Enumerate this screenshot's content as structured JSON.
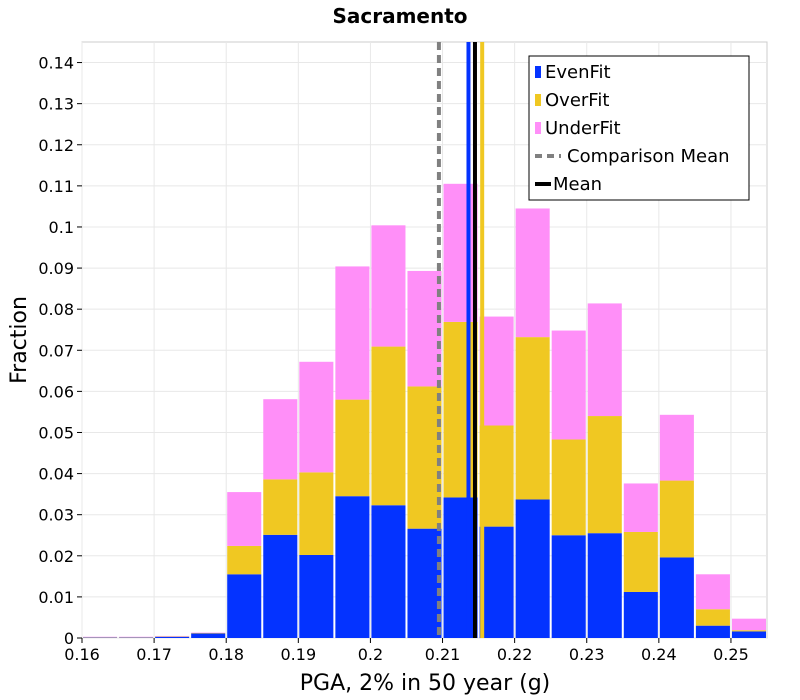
{
  "chart_data": {
    "type": "bar",
    "stacked": true,
    "title": "Sacramento",
    "xlabel": "PGA, 2% in 50 year (g)",
    "ylabel": "Fraction",
    "xlim": [
      0.16,
      0.255
    ],
    "ylim": [
      0,
      0.145
    ],
    "bin_width": 0.005,
    "grid": true,
    "legend_position": "top-right",
    "x_ticks": [
      "0.16",
      "0.17",
      "0.18",
      "0.19",
      "0.2",
      "0.21",
      "0.22",
      "0.23",
      "0.24",
      "0.25"
    ],
    "y_ticks": [
      "0",
      "0.01",
      "0.02",
      "0.03",
      "0.04",
      "0.05",
      "0.06",
      "0.07",
      "0.08",
      "0.09",
      "0.1",
      "0.11",
      "0.12",
      "0.13",
      "0.14"
    ],
    "bins": [
      0.1625,
      0.1675,
      0.1725,
      0.1775,
      0.1825,
      0.1875,
      0.1925,
      0.1975,
      0.2025,
      0.2075,
      0.2125,
      0.2175,
      0.2225,
      0.2275,
      0.2325,
      0.2375,
      0.2425,
      0.2475,
      0.2525
    ],
    "series": [
      {
        "name": "EvenFit",
        "color": "#0433ff",
        "values": [
          0.0001,
          0.0001,
          0.0003,
          0.0011,
          0.0155,
          0.0251,
          0.0202,
          0.0345,
          0.0323,
          0.0266,
          0.0342,
          0.0271,
          0.0337,
          0.025,
          0.0255,
          0.0112,
          0.0196,
          0.003,
          0.0016
        ]
      },
      {
        "name": "OverFit",
        "color": "#f0c822",
        "values": [
          0.0001,
          0.0001,
          0.0001,
          0.0001,
          0.0069,
          0.0135,
          0.0201,
          0.0235,
          0.0386,
          0.0346,
          0.0427,
          0.0246,
          0.0395,
          0.0233,
          0.0285,
          0.0146,
          0.0187,
          0.004,
          0.0003
        ]
      },
      {
        "name": "UnderFit",
        "color": "#ff8ff8",
        "values": [
          0.0001,
          0.0001,
          0.0001,
          0.0001,
          0.0131,
          0.0195,
          0.0269,
          0.0324,
          0.0295,
          0.0281,
          0.0336,
          0.0265,
          0.0313,
          0.0265,
          0.0274,
          0.0118,
          0.016,
          0.0085,
          0.0028
        ]
      }
    ],
    "lines": [
      {
        "name": "Comparison Mean",
        "color": "#808080",
        "style": "dashed",
        "x": 0.2095
      },
      {
        "name": "Mean",
        "color": "#000000",
        "style": "solid",
        "x": 0.2145
      },
      {
        "name": "EvenFit mean",
        "color": "#0433ff",
        "style": "solid",
        "x": 0.2136
      },
      {
        "name": "OverFit mean",
        "color": "#f0c822",
        "style": "solid",
        "x": 0.2155
      }
    ],
    "legend": [
      {
        "label": "EvenFit",
        "color": "#0433ff",
        "kind": "box"
      },
      {
        "label": "OverFit",
        "color": "#f0c822",
        "kind": "box"
      },
      {
        "label": "UnderFit",
        "color": "#ff8ff8",
        "kind": "box"
      },
      {
        "label": "Comparison Mean",
        "color": "#808080",
        "kind": "dashed-line"
      },
      {
        "label": "Mean",
        "color": "#000000",
        "kind": "line"
      }
    ]
  }
}
